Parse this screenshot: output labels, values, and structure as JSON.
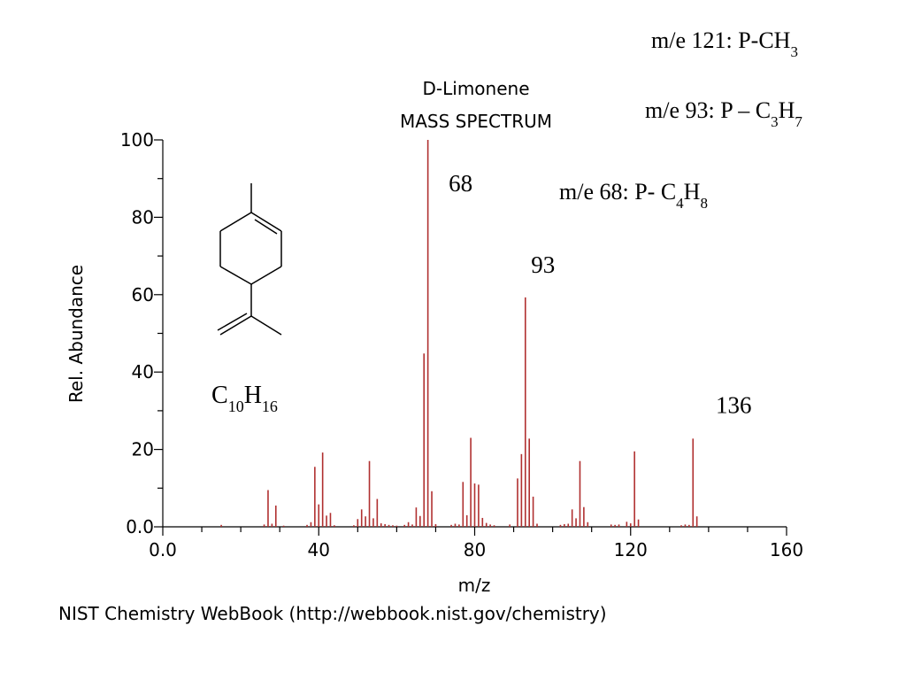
{
  "chart_data": {
    "type": "bar",
    "title": [
      "D-Limonene",
      "MASS SPECTRUM"
    ],
    "xlabel": "m/z",
    "ylabel": "Rel. Abundance",
    "xlim": [
      0,
      160
    ],
    "ylim": [
      0,
      100
    ],
    "x_ticks": [
      0,
      40,
      80,
      120,
      160
    ],
    "x_tick_labels": [
      "0.0",
      "40",
      "80",
      "120",
      "160"
    ],
    "y_ticks": [
      0,
      20,
      40,
      60,
      80,
      100
    ],
    "y_tick_labels": [
      "0.0",
      "20",
      "40",
      "60",
      "80",
      "100"
    ],
    "grid": false,
    "bar_color": "#b03030",
    "peaks": [
      {
        "x": 15,
        "y": 0.5
      },
      {
        "x": 26,
        "y": 0.6
      },
      {
        "x": 27,
        "y": 9.5
      },
      {
        "x": 28,
        "y": 0.8
      },
      {
        "x": 29,
        "y": 5.5
      },
      {
        "x": 31,
        "y": 0.3
      },
      {
        "x": 37,
        "y": 0.5
      },
      {
        "x": 38,
        "y": 1.2
      },
      {
        "x": 39,
        "y": 15.5
      },
      {
        "x": 40,
        "y": 5.8
      },
      {
        "x": 41,
        "y": 19.2
      },
      {
        "x": 42,
        "y": 2.9
      },
      {
        "x": 43,
        "y": 3.6
      },
      {
        "x": 44,
        "y": 0.4
      },
      {
        "x": 49,
        "y": 0.4
      },
      {
        "x": 50,
        "y": 2.0
      },
      {
        "x": 51,
        "y": 4.5
      },
      {
        "x": 52,
        "y": 2.7
      },
      {
        "x": 53,
        "y": 17.0
      },
      {
        "x": 54,
        "y": 2.2
      },
      {
        "x": 55,
        "y": 7.2
      },
      {
        "x": 56,
        "y": 0.9
      },
      {
        "x": 57,
        "y": 0.7
      },
      {
        "x": 58,
        "y": 0.5
      },
      {
        "x": 59,
        "y": 0.4
      },
      {
        "x": 60,
        "y": 0.3
      },
      {
        "x": 62,
        "y": 0.5
      },
      {
        "x": 63,
        "y": 1.2
      },
      {
        "x": 64,
        "y": 0.6
      },
      {
        "x": 65,
        "y": 5.0
      },
      {
        "x": 66,
        "y": 2.8
      },
      {
        "x": 67,
        "y": 44.8
      },
      {
        "x": 68,
        "y": 100
      },
      {
        "x": 69,
        "y": 9.2
      },
      {
        "x": 70,
        "y": 0.7
      },
      {
        "x": 74,
        "y": 0.5
      },
      {
        "x": 75,
        "y": 0.8
      },
      {
        "x": 76,
        "y": 0.6
      },
      {
        "x": 77,
        "y": 11.6
      },
      {
        "x": 78,
        "y": 3.0
      },
      {
        "x": 79,
        "y": 23.0
      },
      {
        "x": 80,
        "y": 11.2
      },
      {
        "x": 81,
        "y": 10.9
      },
      {
        "x": 82,
        "y": 2.3
      },
      {
        "x": 83,
        "y": 1.0
      },
      {
        "x": 84,
        "y": 0.6
      },
      {
        "x": 85,
        "y": 0.4
      },
      {
        "x": 89,
        "y": 0.6
      },
      {
        "x": 91,
        "y": 12.5
      },
      {
        "x": 92,
        "y": 18.8
      },
      {
        "x": 93,
        "y": 59.3
      },
      {
        "x": 94,
        "y": 22.8
      },
      {
        "x": 95,
        "y": 7.8
      },
      {
        "x": 96,
        "y": 0.8
      },
      {
        "x": 102,
        "y": 0.5
      },
      {
        "x": 103,
        "y": 0.7
      },
      {
        "x": 104,
        "y": 0.8
      },
      {
        "x": 105,
        "y": 4.5
      },
      {
        "x": 106,
        "y": 2.2
      },
      {
        "x": 107,
        "y": 17.0
      },
      {
        "x": 108,
        "y": 5.1
      },
      {
        "x": 109,
        "y": 1.2
      },
      {
        "x": 115,
        "y": 0.6
      },
      {
        "x": 116,
        "y": 0.5
      },
      {
        "x": 117,
        "y": 0.6
      },
      {
        "x": 119,
        "y": 1.3
      },
      {
        "x": 120,
        "y": 0.9
      },
      {
        "x": 121,
        "y": 19.5
      },
      {
        "x": 122,
        "y": 1.9
      },
      {
        "x": 133,
        "y": 0.4
      },
      {
        "x": 134,
        "y": 0.6
      },
      {
        "x": 135,
        "y": 0.5
      },
      {
        "x": 136,
        "y": 22.8
      },
      {
        "x": 137,
        "y": 2.7
      }
    ],
    "peak_labels": [
      {
        "x": 68,
        "text": "68"
      },
      {
        "x": 93,
        "text": "93"
      },
      {
        "x": 136,
        "text": "136"
      }
    ]
  },
  "annotations": {
    "m121": {
      "prefix": "m/e 121: P-CH",
      "sub": "3"
    },
    "m93": {
      "prefix": "m/e 93: P – C",
      "sub1": "3",
      "mid": "H",
      "sub2": "7"
    },
    "m68": {
      "prefix": "m/e 68: P- C",
      "sub1": "4",
      "mid": "H",
      "sub2": "8"
    }
  },
  "formula": {
    "c": "C",
    "c_sub": "10",
    "h": "H",
    "h_sub": "16"
  },
  "credit": "NIST Chemistry WebBook (http://webbook.nist.gov/chemistry)"
}
